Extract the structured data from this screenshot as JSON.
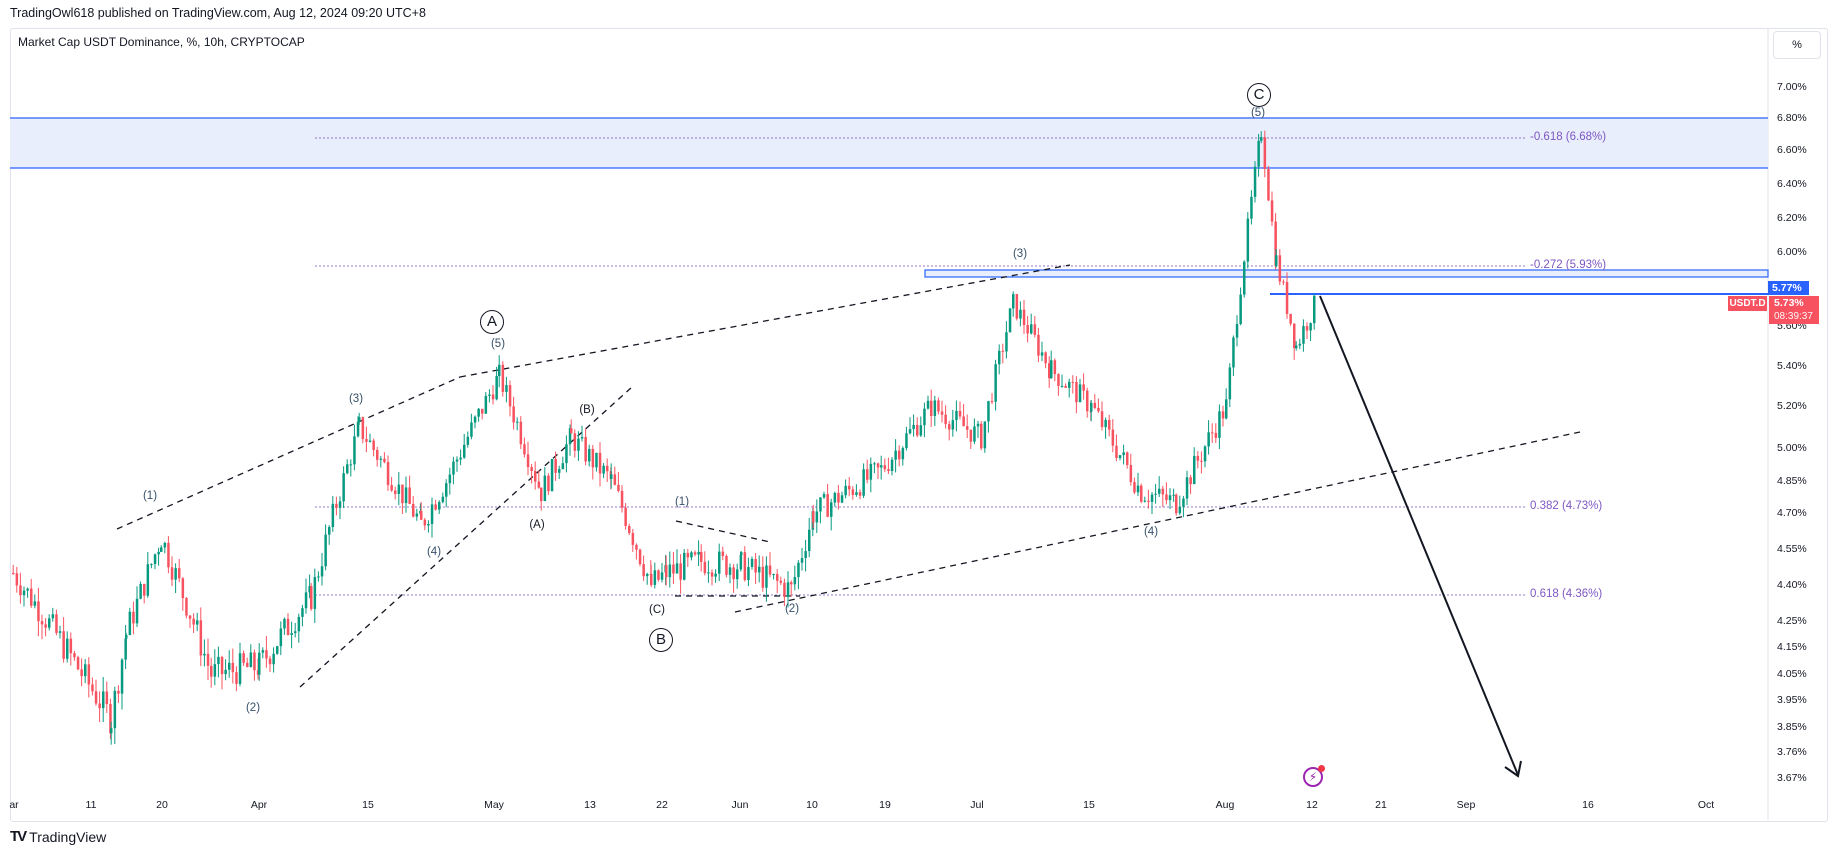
{
  "header": {
    "published": "TradingOwl618 published on TradingView.com, Aug 12, 2024 09:20 UTC+8",
    "legend": "Market Cap USDT Dominance, %, 10h, CRYPTOCAP",
    "scale_button": "%"
  },
  "price_labels": {
    "current_line": "5.77%",
    "symbol": "USDT.D",
    "last_price": "5.73%",
    "countdown": "08:39:37"
  },
  "footer": {
    "logo_text": "TradingView",
    "logo_mark": "TV"
  },
  "colors": {
    "up": "#089981",
    "down": "#f7525f",
    "zone": "#2962ff",
    "fib": "#7e57c2",
    "accent_price": "#2962ff"
  },
  "chart_data": {
    "type": "candlestick",
    "title": "Market Cap USDT Dominance, %, 10h, CRYPTOCAP",
    "xlabel": "",
    "ylabel": "%",
    "ylim": [
      3.62,
      7.1
    ],
    "y_ticks": [
      "7.00%",
      "6.80%",
      "6.60%",
      "6.40%",
      "6.20%",
      "6.00%",
      "5.60%",
      "5.40%",
      "5.20%",
      "5.00%",
      "4.85%",
      "4.70%",
      "4.55%",
      "4.40%",
      "4.25%",
      "4.15%",
      "4.05%",
      "3.95%",
      "3.85%",
      "3.76%",
      "3.67%"
    ],
    "x_ticks": [
      "ar",
      "11",
      "20",
      "Apr",
      "15",
      "May",
      "13",
      "22",
      "Jun",
      "10",
      "19",
      "Jul",
      "15",
      "Aug",
      "12",
      "21",
      "Sep",
      "16",
      "Oct"
    ],
    "approx_series": {
      "x": [
        "Mar 4",
        "Mar 11",
        "Mar 14",
        "Mar 20",
        "Mar 28",
        "Apr 1",
        "Apr 8",
        "Apr 13",
        "Apr 18",
        "Apr 24",
        "May 1",
        "May 6",
        "May 10",
        "May 15",
        "May 20",
        "May 22",
        "May 27",
        "Jun 1",
        "Jun 6",
        "Jun 10",
        "Jun 19",
        "Jun 26",
        "Jul 1",
        "Jul 5",
        "Jul 10",
        "Jul 15",
        "Jul 22",
        "Jul 26",
        "Aug 1",
        "Aug 5",
        "Aug 7",
        "Aug 9",
        "Aug 12"
      ],
      "close": [
        4.45,
        3.88,
        4.2,
        4.6,
        4.05,
        4.08,
        4.35,
        5.1,
        4.65,
        4.85,
        5.35,
        4.8,
        5.05,
        4.85,
        4.4,
        4.45,
        4.5,
        4.48,
        4.38,
        4.7,
        4.9,
        5.2,
        5.05,
        5.72,
        5.38,
        5.2,
        4.8,
        4.75,
        5.2,
        6.72,
        5.95,
        5.5,
        5.73
      ]
    },
    "annotations": {
      "circled_waves": [
        {
          "label": "A",
          "price": 5.4
        },
        {
          "label": "B",
          "price": 4.36
        },
        {
          "label": "C",
          "price": 6.72
        }
      ],
      "wave_labels": [
        "(1)",
        "(2)",
        "(3)",
        "(4)",
        "(5)",
        "(A)",
        "(B)",
        "(C)",
        "(1)",
        "(2)",
        "(3)",
        "(4)",
        "(5)"
      ],
      "fib_levels": [
        {
          "label": "-0.618 (6.68%)",
          "value": 6.68
        },
        {
          "label": "-0.272 (5.93%)",
          "value": 5.93
        },
        {
          "label": "0.382 (4.73%)",
          "value": 4.73
        },
        {
          "label": "0.618 (4.36%)",
          "value": 4.36
        }
      ],
      "zones": [
        {
          "from": 6.5,
          "to": 6.8
        },
        {
          "from": 5.84,
          "to": 5.88
        }
      ],
      "horizontal_line": 5.77,
      "projection_arrow": {
        "from": 5.77,
        "to": 3.67
      }
    },
    "grid": false,
    "legend_position": "top-left"
  }
}
